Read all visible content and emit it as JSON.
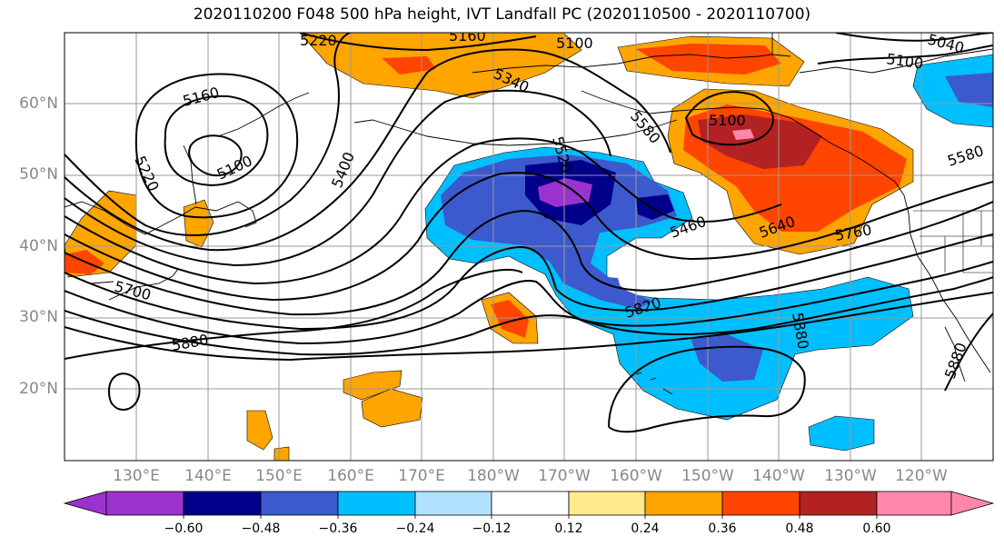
{
  "title": "2020110200 F048 500 hPa height, IVT Landfall PC (2020110500 - 2020110700)",
  "map": {
    "extent_lon": [
      120,
      252
    ],
    "extent_lat": [
      10,
      70
    ],
    "lat_labels": [
      "60°N",
      "50°N",
      "40°N",
      "30°N",
      "20°N"
    ],
    "lon_labels": [
      "130°E",
      "140°E",
      "150°E",
      "160°E",
      "170°E",
      "180°W",
      "170°W",
      "160°W",
      "150°W",
      "140°W",
      "130°W",
      "120°W"
    ],
    "contour_labels": [
      "5220",
      "5160",
      "5100",
      "5040",
      "5100",
      "5340",
      "5160",
      "5220",
      "5100",
      "5400",
      "5520",
      "5580",
      "5100",
      "5580",
      "5460",
      "5640",
      "5760",
      "5700",
      "5820",
      "5880",
      "5880",
      "5880"
    ]
  },
  "colorbar": {
    "ticks": [
      "−0.60",
      "−0.48",
      "−0.36",
      "−0.24",
      "−0.12",
      "0.12",
      "0.24",
      "0.36",
      "0.48",
      "0.60"
    ],
    "colors": [
      "#9b32cd",
      "#00008b",
      "#3c5acd",
      "#00bfff",
      "#b0e2ff",
      "#ffffff",
      "#ffea8c",
      "#ffa500",
      "#ff4500",
      "#b22222",
      "#ff88aa"
    ]
  }
}
